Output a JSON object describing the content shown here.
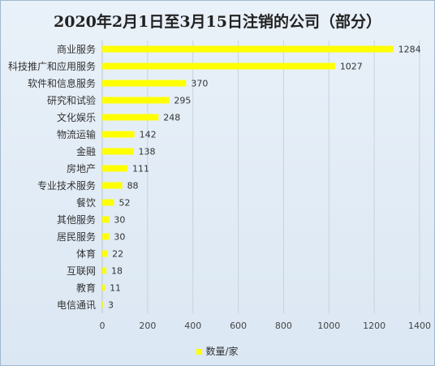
{
  "chart_data": {
    "type": "bar",
    "orientation": "horizontal",
    "title": "2020年2月1日至3月15日注销的公司（部分）",
    "categories": [
      "商业服务",
      "科技推广和应用服务",
      "软件和信息服务",
      "研究和试验",
      "文化娱乐",
      "物流运输",
      "金融",
      "房地产",
      "专业技术服务",
      "餐饮",
      "其他服务",
      "居民服务",
      "体育",
      "互联网",
      "教育",
      "电信通讯"
    ],
    "series": [
      {
        "name": "数量/家",
        "values": [
          1284,
          1027,
          370,
          295,
          248,
          142,
          138,
          111,
          88,
          52,
          30,
          30,
          22,
          18,
          11,
          3
        ],
        "color": "#ffff00"
      }
    ],
    "xlim": [
      0,
      1400
    ],
    "xticks": [
      0,
      200,
      400,
      600,
      800,
      1000,
      1200,
      1400
    ],
    "grid": true,
    "legend_position": "bottom",
    "data_labels": true
  }
}
